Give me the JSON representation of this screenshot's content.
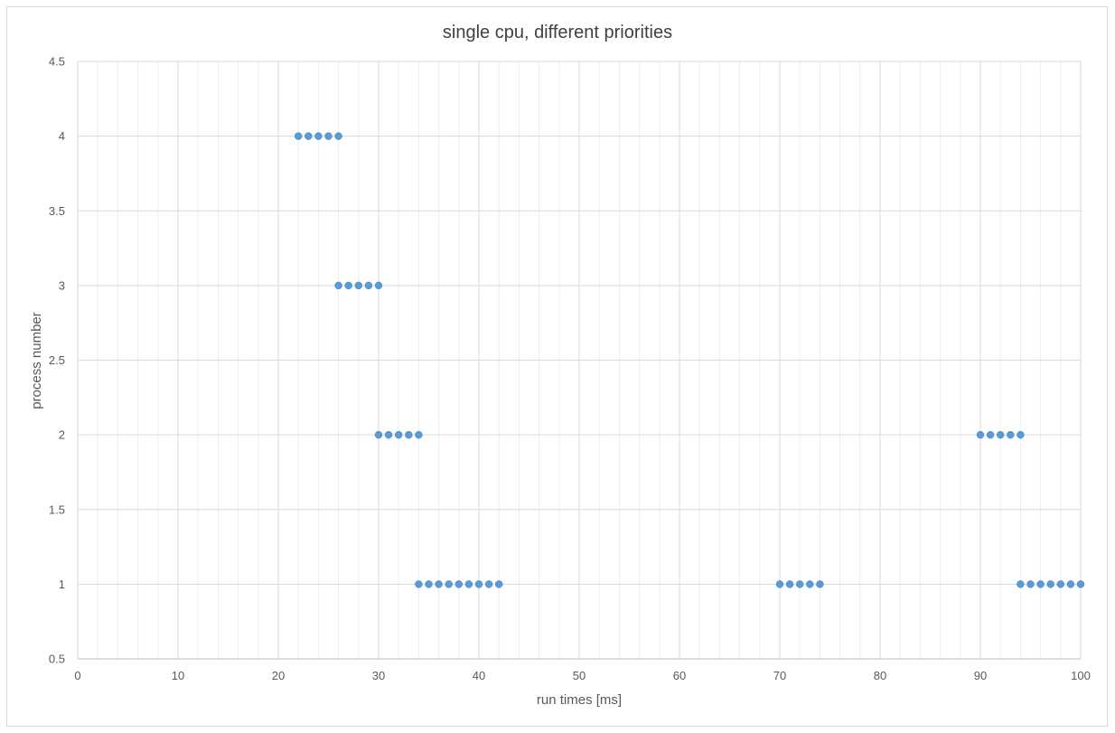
{
  "chart_data": {
    "type": "scatter",
    "title": "single cpu, different priorities",
    "xlabel": "run times [ms]",
    "ylabel": "process number",
    "xlim": [
      0,
      100
    ],
    "ylim": [
      0.5,
      4.5
    ],
    "x_ticks": [
      0,
      10,
      20,
      30,
      40,
      50,
      60,
      70,
      80,
      90,
      100
    ],
    "x_tick_labels": [
      "0",
      "10",
      "20",
      "30",
      "40",
      "50",
      "60",
      "70",
      "80",
      "90",
      "100"
    ],
    "x_minor_step": 2,
    "y_ticks": [
      0.5,
      1,
      1.5,
      2,
      2.5,
      3,
      3.5,
      4,
      4.5
    ],
    "y_tick_labels": [
      "0.5",
      "1",
      "1.5",
      "2",
      "2.5",
      "3",
      "3.5",
      "4",
      "4.5"
    ],
    "grid": true,
    "legend": "none",
    "marker_color": "#5b9bd5",
    "series": [
      {
        "points": [
          [
            22,
            4
          ],
          [
            23,
            4
          ],
          [
            24,
            4
          ],
          [
            25,
            4
          ],
          [
            26,
            4
          ],
          [
            26,
            3
          ],
          [
            27,
            3
          ],
          [
            28,
            3
          ],
          [
            29,
            3
          ],
          [
            30,
            3
          ],
          [
            30,
            2
          ],
          [
            31,
            2
          ],
          [
            32,
            2
          ],
          [
            33,
            2
          ],
          [
            34,
            2
          ],
          [
            34,
            1
          ],
          [
            35,
            1
          ],
          [
            36,
            1
          ],
          [
            37,
            1
          ],
          [
            38,
            1
          ],
          [
            39,
            1
          ],
          [
            40,
            1
          ],
          [
            41,
            1
          ],
          [
            42,
            1
          ],
          [
            70,
            1
          ],
          [
            71,
            1
          ],
          [
            72,
            1
          ],
          [
            73,
            1
          ],
          [
            74,
            1
          ],
          [
            90,
            2
          ],
          [
            91,
            2
          ],
          [
            92,
            2
          ],
          [
            93,
            2
          ],
          [
            94,
            2
          ],
          [
            94,
            1
          ],
          [
            95,
            1
          ],
          [
            96,
            1
          ],
          [
            97,
            1
          ],
          [
            98,
            1
          ],
          [
            99,
            1
          ],
          [
            100,
            1
          ]
        ]
      }
    ]
  }
}
